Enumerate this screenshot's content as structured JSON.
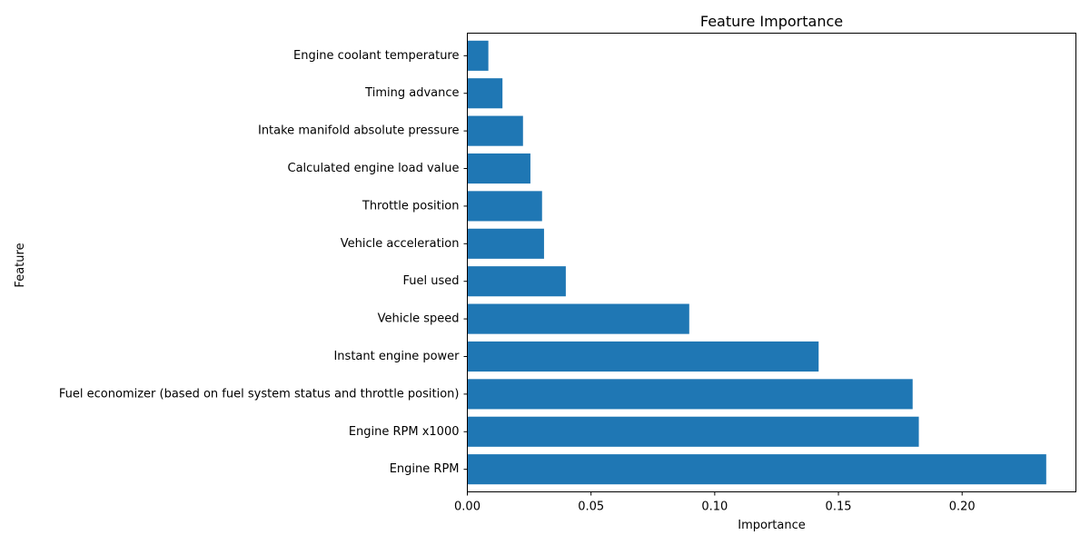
{
  "chart_data": {
    "type": "bar",
    "orientation": "horizontal",
    "title": "Feature Importance",
    "xlabel": "Importance",
    "ylabel": "Feature",
    "xlim": [
      0,
      0.246
    ],
    "xticks": [
      "0.00",
      "0.05",
      "0.10",
      "0.15",
      "0.20"
    ],
    "bar_color": "#1f77b4",
    "grid": false,
    "categories": [
      "Engine RPM",
      "Engine RPM x1000",
      "Fuel economizer (based on fuel system status and throttle position)",
      "Instant engine power",
      "Vehicle speed",
      "Fuel used",
      "Vehicle acceleration",
      "Throttle position",
      "Calculated engine load value",
      "Intake manifold absolute pressure",
      "Timing advance",
      "Engine coolant temperature"
    ],
    "values": [
      0.234,
      0.1825,
      0.18,
      0.142,
      0.0897,
      0.0398,
      0.031,
      0.0302,
      0.0255,
      0.0225,
      0.0142,
      0.0085
    ]
  }
}
